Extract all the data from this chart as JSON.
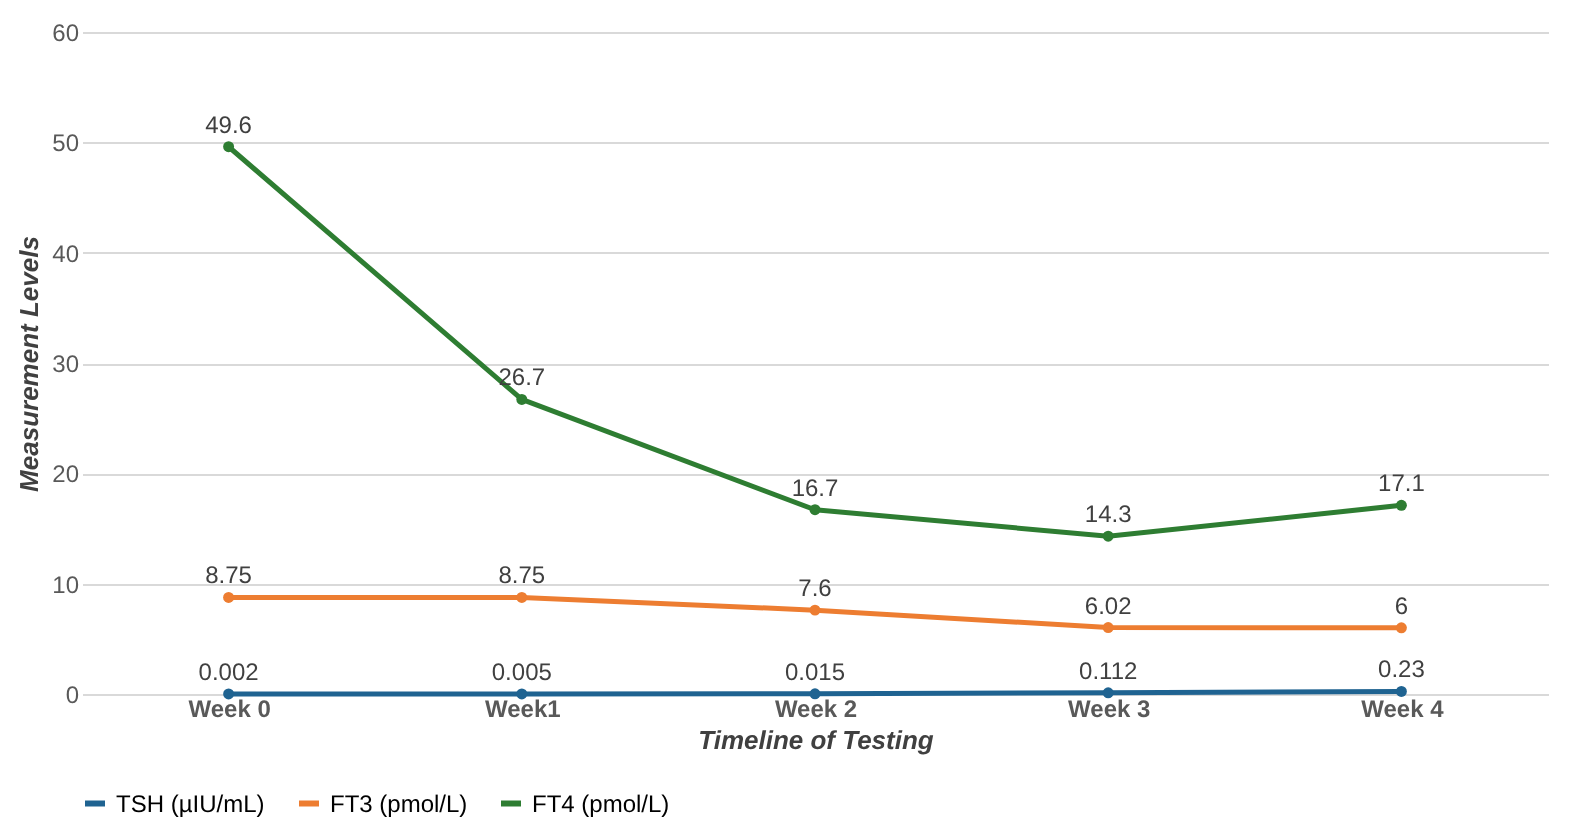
{
  "chart_data": {
    "type": "line",
    "xlabel": "Timeline of Testing",
    "ylabel": "Measurement Levels",
    "categories": [
      "Week 0",
      "Week1",
      "Week 2",
      "Week 3",
      "Week 4"
    ],
    "series": [
      {
        "name": "TSH (µIU/mL)",
        "color": "#1f6391",
        "values": [
          0.002,
          0.005,
          0.015,
          0.112,
          0.23
        ]
      },
      {
        "name": "FT3 (pmol/L)",
        "color": "#ed7d31",
        "values": [
          8.75,
          8.75,
          7.6,
          6.02,
          6
        ]
      },
      {
        "name": "FT4 (pmol/L)",
        "color": "#2e7d32",
        "values": [
          49.6,
          26.7,
          16.7,
          14.3,
          17.1
        ]
      }
    ],
    "ylim": [
      0,
      60
    ],
    "yticks": [
      0,
      10,
      20,
      30,
      40,
      50,
      60
    ],
    "grid": "y",
    "legend": "bottom",
    "marker": "circle",
    "line_style": "solid",
    "data_labels": true
  }
}
